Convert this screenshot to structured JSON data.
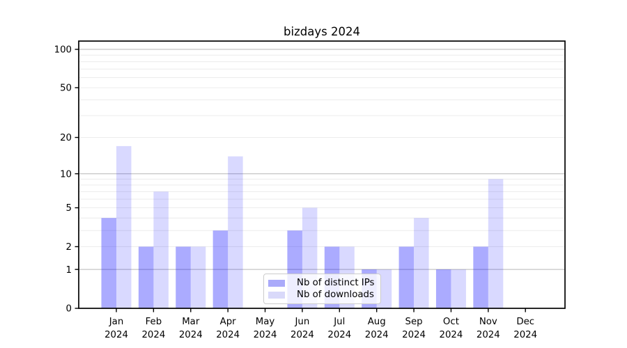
{
  "title": "bizdays 2024",
  "legend": {
    "items": [
      {
        "label": "Nb of distinct IPs",
        "swatch_hex": "#aaaafa"
      },
      {
        "label": "Nb of downloads",
        "swatch_hex": "#d9d9fa"
      }
    ]
  },
  "chart_data": {
    "type": "bar",
    "title": "bizdays 2024",
    "categories": [
      "Jan",
      "Feb",
      "Mar",
      "Apr",
      "May",
      "Jun",
      "Jul",
      "Aug",
      "Sep",
      "Oct",
      "Nov",
      "Dec"
    ],
    "year_label": "2024",
    "series": [
      {
        "name": "Nb of distinct IPs",
        "color": "rgba(0,0,255,0.33)",
        "swatch_hex": "#aaaafa",
        "values": [
          4,
          2,
          2,
          3,
          0,
          3,
          2,
          1,
          2,
          1,
          2,
          0
        ]
      },
      {
        "name": "Nb of downloads",
        "color": "rgba(0,0,255,0.15)",
        "swatch_hex": "#d9d9fa",
        "values": [
          17,
          7,
          2,
          14,
          0,
          5,
          2,
          1,
          4,
          1,
          9,
          0
        ]
      }
    ],
    "yscale": "log1p",
    "ylim": [
      0,
      116
    ],
    "yticks": [
      0,
      1,
      2,
      5,
      10,
      20,
      50,
      100
    ],
    "major_grid_values": [
      1,
      10,
      100
    ],
    "minor_grid_values": [
      2,
      3,
      4,
      5,
      6,
      7,
      8,
      9,
      20,
      30,
      40,
      50,
      60,
      70,
      80,
      90
    ],
    "grid": true,
    "legend_position": "lower center",
    "colors": {
      "major_grid": "#c6c6c6",
      "minor_grid": "#ececec",
      "axis": "#000000",
      "background": "#ffffff"
    }
  }
}
